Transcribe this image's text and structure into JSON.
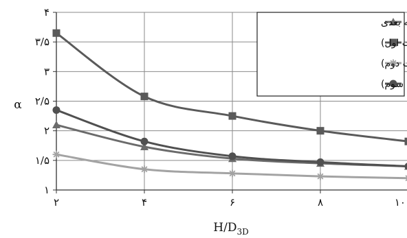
{
  "chart_data": {
    "type": "line",
    "xlabel": "H/D3D",
    "xlabel_main": "H/D",
    "xlabel_sub": "3D",
    "ylabel": "α",
    "xlim": [
      2,
      10
    ],
    "ylim": [
      1,
      4
    ],
    "x": [
      2,
      4,
      6,
      8,
      10
    ],
    "x_tick_labels": [
      "۲",
      "۴",
      "۶",
      "۸",
      "۱۰"
    ],
    "y_ticks": [
      1,
      1.5,
      2,
      2.5,
      3,
      3.5,
      4
    ],
    "y_tick_labels": [
      "۱",
      "۱/۵",
      "۲",
      "۲/۵",
      "۳",
      "۳/۵",
      "۴"
    ],
    "grid": true,
    "legend_position": "top-right",
    "series": [
      {
        "name": "سه بعدی",
        "marker": "triangle",
        "color": "#6b6b6b",
        "values": [
          2.1,
          1.73,
          1.53,
          1.45,
          1.4
        ]
      },
      {
        "name": "دو بعدی (حالت اول)",
        "marker": "square",
        "color": "#5a5a5a",
        "values": [
          3.65,
          2.58,
          2.25,
          2.0,
          1.82
        ]
      },
      {
        "name": "دو بعدی (حالت دوم)",
        "marker": "star",
        "color": "#a3a3a3",
        "values": [
          1.6,
          1.35,
          1.28,
          1.23,
          1.2
        ]
      },
      {
        "name": "دو بعدی (حالت سوم)",
        "marker": "circle",
        "color": "#505050",
        "values": [
          2.35,
          1.82,
          1.57,
          1.47,
          1.4
        ]
      }
    ]
  }
}
